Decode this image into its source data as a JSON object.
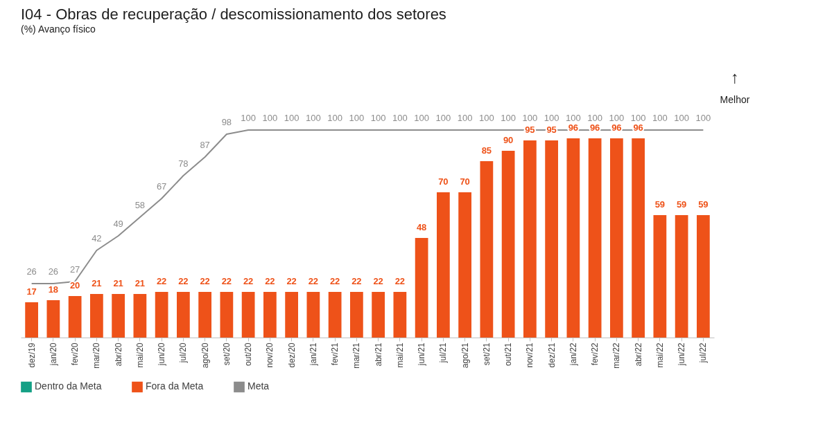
{
  "chart_data": {
    "type": "bar",
    "title": "I04 - Obras de recuperação / descomissionamento dos setores",
    "subtitle": "(%) Avanço físico",
    "categories": [
      "dez/19",
      "jan/20",
      "fev/20",
      "mar/20",
      "abr/20",
      "mai/20",
      "jun/20",
      "jul/20",
      "ago/20",
      "set/20",
      "out/20",
      "nov/20",
      "dez/20",
      "jan/21",
      "fev/21",
      "mar/21",
      "abr/21",
      "mai/21",
      "jun/21",
      "jul/21",
      "ago/21",
      "set/21",
      "out/21",
      "nov/21",
      "dez/21",
      "jan/22",
      "fev/22",
      "mar/22",
      "abr/22",
      "mai/22",
      "jun/22",
      "jul/22"
    ],
    "series": [
      {
        "name": "Dentro da Meta",
        "color": "#14a085",
        "values": [
          null,
          null,
          null,
          null,
          null,
          null,
          null,
          null,
          null,
          null,
          null,
          null,
          null,
          null,
          null,
          null,
          null,
          null,
          null,
          null,
          null,
          null,
          null,
          null,
          null,
          null,
          null,
          null,
          null,
          null,
          null,
          null
        ]
      },
      {
        "name": "Fora da Meta",
        "color": "#ee5219",
        "values": [
          17,
          18,
          20,
          21,
          21,
          21,
          22,
          22,
          22,
          22,
          22,
          22,
          22,
          22,
          22,
          22,
          22,
          22,
          48,
          70,
          70,
          85,
          90,
          95,
          95,
          96,
          96,
          96,
          96,
          59,
          59,
          59
        ]
      },
      {
        "name": "Meta",
        "type": "line",
        "color": "#8c8c8c",
        "values": [
          26,
          26,
          27,
          42,
          49,
          58,
          67,
          78,
          87,
          98,
          100,
          100,
          100,
          100,
          100,
          100,
          100,
          100,
          100,
          100,
          100,
          100,
          100,
          100,
          100,
          100,
          100,
          100,
          100,
          100,
          100,
          100
        ]
      }
    ],
    "data_labels": true,
    "legend": "bottom",
    "annotations": [
      "↑",
      "Melhor"
    ]
  }
}
